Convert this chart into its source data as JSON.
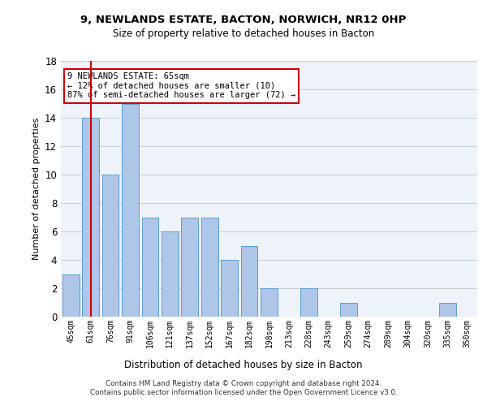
{
  "title_line1": "9, NEWLANDS ESTATE, BACTON, NORWICH, NR12 0HP",
  "title_line2": "Size of property relative to detached houses in Bacton",
  "xlabel": "Distribution of detached houses by size in Bacton",
  "ylabel": "Number of detached properties",
  "categories": [
    "45sqm",
    "61sqm",
    "76sqm",
    "91sqm",
    "106sqm",
    "121sqm",
    "137sqm",
    "152sqm",
    "167sqm",
    "182sqm",
    "198sqm",
    "213sqm",
    "228sqm",
    "243sqm",
    "259sqm",
    "274sqm",
    "289sqm",
    "304sqm",
    "320sqm",
    "335sqm",
    "350sqm"
  ],
  "values": [
    3,
    14,
    10,
    15,
    7,
    6,
    7,
    7,
    4,
    5,
    2,
    0,
    2,
    0,
    1,
    0,
    0,
    0,
    0,
    1,
    0
  ],
  "bar_color": "#aec6e8",
  "bar_edge_color": "#5a9fd4",
  "vline_x": 1,
  "vline_color": "#cc0000",
  "annotation_text": "9 NEWLANDS ESTATE: 65sqm\n← 12% of detached houses are smaller (10)\n87% of semi-detached houses are larger (72) →",
  "annotation_box_color": "#ffffff",
  "annotation_box_edge": "#cc0000",
  "ylim": [
    0,
    18
  ],
  "yticks": [
    0,
    2,
    4,
    6,
    8,
    10,
    12,
    14,
    16,
    18
  ],
  "footer": "Contains HM Land Registry data © Crown copyright and database right 2024.\nContains public sector information licensed under the Open Government Licence v3.0.",
  "bg_color": "#eef2f9",
  "grid_color": "#cccccc"
}
